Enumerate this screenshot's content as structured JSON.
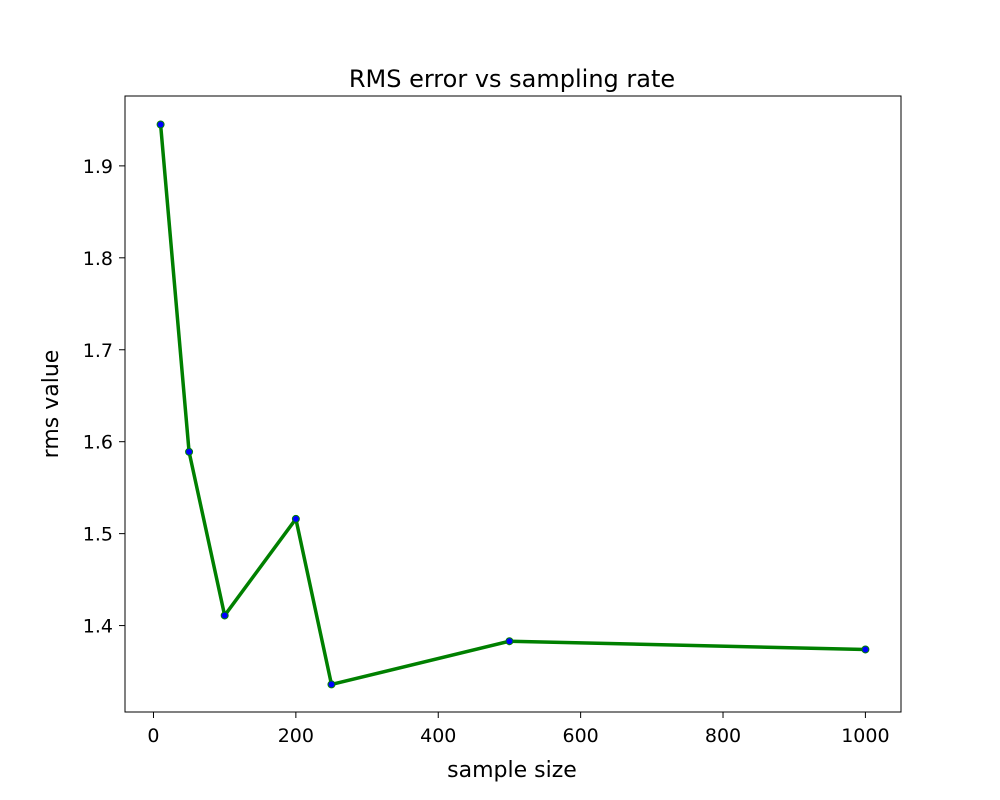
{
  "chart_data": {
    "type": "line",
    "title": "RMS error vs sampling rate",
    "xlabel": "sample size",
    "ylabel": "rms value",
    "xlim": [
      -40,
      1050
    ],
    "ylim": [
      1.306,
      1.976
    ],
    "xticks": [
      0,
      200,
      400,
      600,
      800,
      1000
    ],
    "xtick_labels": [
      "0",
      "200",
      "400",
      "600",
      "800",
      "1000"
    ],
    "yticks": [
      1.4,
      1.5,
      1.6,
      1.7,
      1.8,
      1.9
    ],
    "ytick_labels": [
      "1.4",
      "1.5",
      "1.6",
      "1.7",
      "1.8",
      "1.9"
    ],
    "grid": false,
    "legend": "none",
    "series": [
      {
        "x": [
          10,
          50,
          100,
          200,
          250,
          500,
          1000
        ],
        "y": [
          1.945,
          1.589,
          1.411,
          1.516,
          1.336,
          1.383,
          1.374
        ],
        "line_color": "#008000",
        "marker_color": "#0000ff"
      }
    ]
  }
}
